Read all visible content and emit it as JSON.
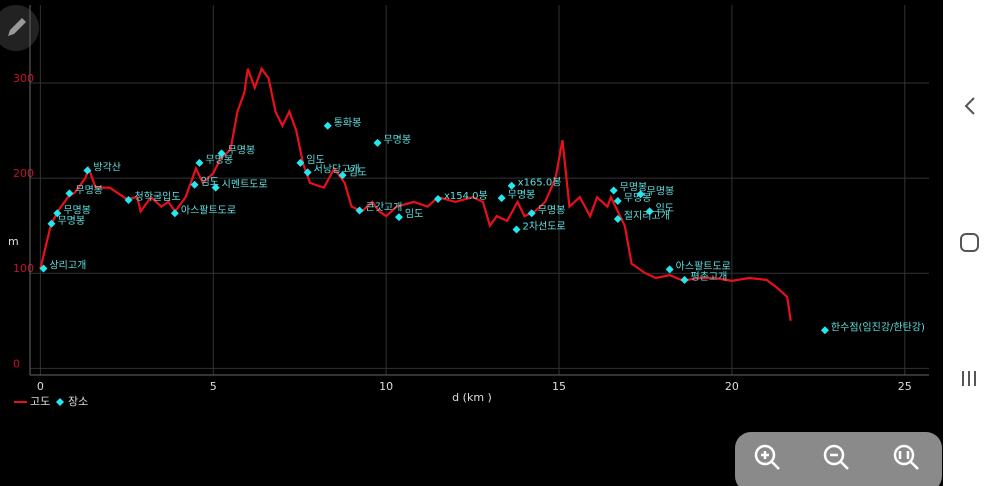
{
  "chart_data": {
    "type": "line",
    "x_label": "d (km )",
    "y_label": "m",
    "xlim": [
      -0.3,
      25.7
    ],
    "xticks": [
      0,
      5,
      10,
      15,
      20,
      25
    ],
    "ylim": [
      -7,
      382
    ],
    "yticks": [
      0,
      100,
      200,
      300
    ],
    "grid": true,
    "legend": "bottom-left",
    "series": [
      {
        "name": "고도",
        "color": "#e8101a",
        "x": [
          0,
          0.3,
          0.5,
          0.8,
          1.0,
          1.3,
          1.4,
          1.6,
          2.0,
          2.5,
          2.8,
          2.9,
          3.2,
          3.5,
          3.7,
          3.9,
          4.2,
          4.5,
          4.7,
          5.0,
          5.2,
          5.5,
          5.7,
          5.9,
          6.0,
          6.2,
          6.4,
          6.6,
          6.8,
          7.0,
          7.2,
          7.4,
          7.6,
          7.8,
          8.2,
          8.5,
          8.8,
          9.0,
          9.3,
          9.6,
          9.8,
          10.0,
          10.3,
          10.8,
          11.2,
          11.5,
          12.0,
          12.5,
          12.8,
          13.0,
          13.2,
          13.5,
          13.8,
          14.0,
          14.3,
          14.6,
          14.9,
          15.1,
          15.3,
          15.6,
          15.9,
          16.1,
          16.4,
          16.5,
          16.9,
          17.1,
          17.5,
          17.8,
          18.2,
          18.6,
          19.0,
          19.5,
          20.0,
          20.5,
          21.0,
          21.3,
          21.6,
          21.7
        ],
        "values": [
          105,
          150,
          165,
          180,
          185,
          200,
          210,
          190,
          190,
          178,
          180,
          165,
          180,
          170,
          175,
          165,
          180,
          210,
          195,
          205,
          220,
          230,
          270,
          290,
          315,
          295,
          315,
          305,
          270,
          255,
          270,
          250,
          215,
          195,
          190,
          210,
          195,
          170,
          165,
          175,
          165,
          160,
          170,
          175,
          170,
          180,
          175,
          180,
          175,
          150,
          160,
          155,
          175,
          160,
          165,
          175,
          200,
          240,
          170,
          180,
          160,
          180,
          170,
          180,
          150,
          110,
          100,
          95,
          98,
          92,
          95,
          95,
          92,
          95,
          93,
          85,
          75,
          50
        ]
      },
      {
        "name": "장소",
        "color": "#22e8f0",
        "type": "scatter",
        "x": [
          0.09,
          0.32,
          0.49,
          0.84,
          1.36,
          2.55,
          3.89,
          4.46,
          4.6,
          5.24,
          5.07,
          8.31,
          9.75,
          7.52,
          7.73,
          8.74,
          9.23,
          10.37,
          11.5,
          13.63,
          13.34,
          13.77,
          14.21,
          16.58,
          16.7,
          17.36,
          17.62,
          16.7,
          18.2,
          18.63,
          22.69
        ],
        "values": [
          105,
          152,
          163,
          184,
          208,
          177,
          163,
          193,
          216,
          226,
          190,
          255,
          237,
          216,
          206,
          203,
          166,
          159,
          178,
          192,
          179,
          146,
          163,
          187,
          176,
          183,
          165,
          157,
          104,
          93,
          40
        ],
        "labels": [
          "상리고개",
          "무명봉",
          "무명봉",
          "무명봉",
          "방각산",
          "청학굴입도",
          "아스팔트도로",
          "임도",
          "무명봉",
          "무명봉",
          "시멘트도로",
          "통화봉",
          "무명봉",
          "임도",
          "서낭당고개",
          "임도",
          "큰갓고개",
          "임도",
          "x154.0봉",
          "x165.0봉",
          "무명봉",
          "2차선도로",
          "무명봉",
          "무명봉",
          "무명봉",
          "무명봉",
          "임도",
          "절지리고개",
          "아스팔트도로",
          "평촌고개",
          "한수점(임진강/한탄강)"
        ]
      }
    ]
  }
}
